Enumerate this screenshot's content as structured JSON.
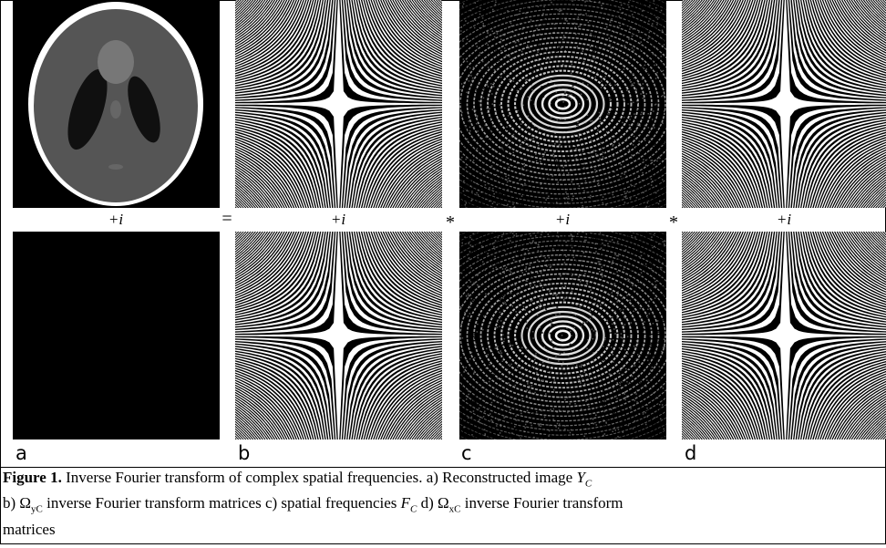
{
  "panels": [
    {
      "letter": "a",
      "label": "+i"
    },
    {
      "letter": "b",
      "label": "+i"
    },
    {
      "letter": "c",
      "label": "+i"
    },
    {
      "letter": "d",
      "label": "+i"
    }
  ],
  "operators": [
    "=",
    "*",
    "*"
  ],
  "caption": {
    "figure": "Figure 1.",
    "line1": " Inverse Fourier transform of complex spatial frequencies. a) Reconstructed image ",
    "y_symbol": "Y",
    "y_sub": "C",
    "line2a": "b)  Ω",
    "omega_y_sub": "yC",
    "line2b": " inverse Fourier transform matrices c) spatial frequencies ",
    "f_symbol": "F",
    "f_sub": "C",
    "line2c": " d) Ω",
    "omega_x_sub": "xC",
    "line2d": " inverse Fourier transform",
    "line3": "matrices"
  }
}
